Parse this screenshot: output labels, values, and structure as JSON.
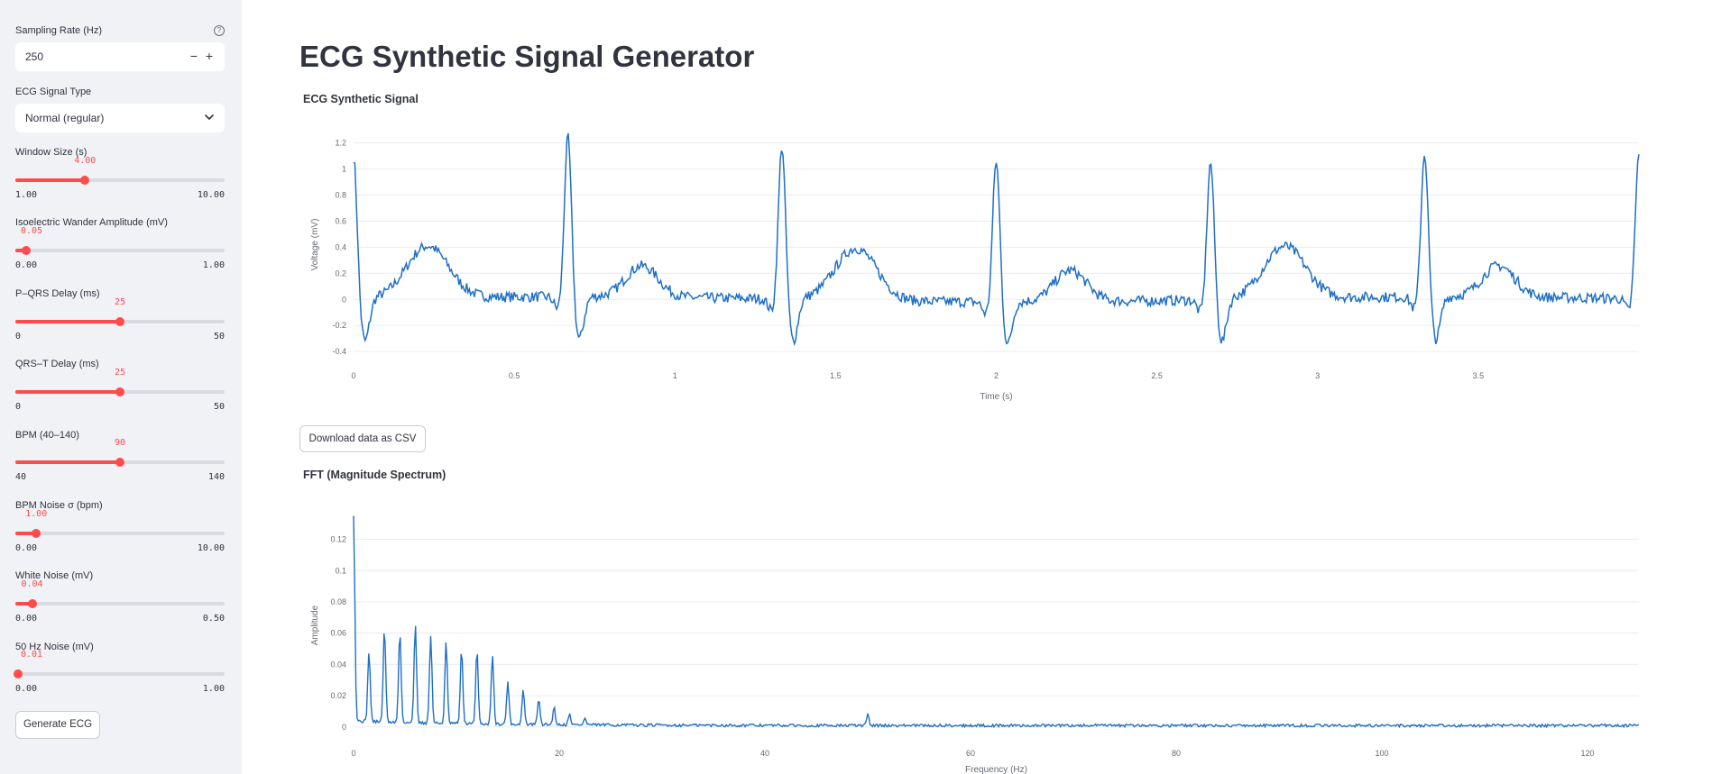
{
  "sidebar": {
    "sampling_rate": {
      "label": "Sampling Rate (Hz)",
      "value": "250",
      "minus": "−",
      "plus": "+",
      "help": "?"
    },
    "signal_type": {
      "label": "ECG Signal Type",
      "value": "Normal (regular)"
    },
    "sliders": [
      {
        "label": "Window Size (s)",
        "value": "4.00",
        "min": "1.00",
        "max": "10.00",
        "fraction": 0.333
      },
      {
        "label": "Isoelectric Wander Amplitude (mV)",
        "value": "0.05",
        "min": "0.00",
        "max": "1.00",
        "fraction": 0.05
      },
      {
        "label": "P–QRS Delay (ms)",
        "value": "25",
        "min": "0",
        "max": "50",
        "fraction": 0.5
      },
      {
        "label": "QRS–T Delay (ms)",
        "value": "25",
        "min": "0",
        "max": "50",
        "fraction": 0.5
      },
      {
        "label": "BPM (40–140)",
        "value": "90",
        "min": "40",
        "max": "140",
        "fraction": 0.5
      },
      {
        "label": "BPM Noise σ (bpm)",
        "value": "1.00",
        "min": "0.00",
        "max": "10.00",
        "fraction": 0.1
      },
      {
        "label": "White Noise (mV)",
        "value": "0.04",
        "min": "0.00",
        "max": "0.50",
        "fraction": 0.08
      },
      {
        "label": "50 Hz Noise (mV)",
        "value": "0.01",
        "min": "0.00",
        "max": "1.00",
        "fraction": 0.01
      }
    ],
    "generate_button": "Generate ECG"
  },
  "main": {
    "title": "ECG Synthetic Signal Generator",
    "download_button": "Download data as CSV"
  },
  "colors": {
    "accent": "#ff4b4b",
    "line": "#1f6fc5",
    "sidebar_bg": "#f0f2f6"
  },
  "chart_data": [
    {
      "type": "line",
      "title": "ECG Synthetic Signal",
      "xlabel": "Time (s)",
      "ylabel": "Voltage (mV)",
      "xlim": [
        0,
        4
      ],
      "ylim": [
        -0.42,
        1.26
      ],
      "xticks": [
        "0",
        "0.5",
        "1",
        "1.5",
        "2",
        "2.5",
        "3",
        "3.5"
      ],
      "yticks": [
        "-0.4",
        "-0.2",
        "0",
        "0.2",
        "0.4",
        "0.6",
        "0.8",
        "1",
        "1.2"
      ],
      "grid": true,
      "beat_r_peak_times": [
        0.0,
        0.667,
        1.333,
        2.0,
        2.667,
        3.333,
        4.0
      ],
      "r_peak_values": [
        1.11,
        1.24,
        1.19,
        1.1,
        1.07,
        1.12,
        1.12
      ],
      "p_wave_peak": 0.32,
      "t_wave_peak": 0.5,
      "s_trough": -0.33
    },
    {
      "type": "line",
      "title": "FFT (Magnitude Spectrum)",
      "xlabel": "Frequency (Hz)",
      "ylabel": "Amplitude",
      "xlim": [
        0,
        125
      ],
      "ylim": [
        -0.003,
        0.133
      ],
      "xticks": [
        "0",
        "20",
        "40",
        "60",
        "80",
        "100",
        "120"
      ],
      "yticks": [
        "0",
        "0.02",
        "0.04",
        "0.06",
        "0.08",
        "0.1",
        "0.12"
      ],
      "grid": true,
      "harmonic_freqs": [
        1.5,
        3.0,
        4.5,
        6.0,
        7.5,
        9.0,
        10.5,
        12.0,
        13.5,
        15.0,
        16.5,
        18.0,
        19.5,
        21.0,
        22.5
      ],
      "harmonic_amps": [
        0.045,
        0.06,
        0.058,
        0.063,
        0.056,
        0.052,
        0.047,
        0.047,
        0.045,
        0.027,
        0.022,
        0.016,
        0.011,
        0.007,
        0.004
      ],
      "dc_peak": 0.132,
      "line_noise_peak": {
        "x": 50,
        "y": 0.007
      }
    }
  ]
}
